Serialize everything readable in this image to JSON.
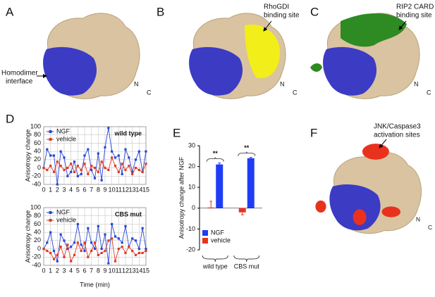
{
  "panel_labels": [
    "A",
    "B",
    "C",
    "D",
    "E",
    "F"
  ],
  "structures": [
    {
      "callout": [
        "Homodimer",
        "interface"
      ],
      "termini": [
        "N",
        "C"
      ]
    },
    {
      "callout": [
        "RhoGDI",
        "binding site"
      ],
      "termini": [
        "N",
        "C"
      ]
    },
    {
      "callout": [
        "RIP2 CARD",
        "binding site"
      ],
      "termini": [
        "N",
        "C"
      ]
    },
    {
      "callout": [
        "JNK/Caspase3",
        "activation sites"
      ],
      "termini": [
        "N",
        "C"
      ]
    }
  ],
  "chart_data": [
    {
      "type": "line",
      "title": "wild type",
      "y_label": "Anisotropy change",
      "grid": true,
      "x": [
        0,
        0.5,
        1,
        1.5,
        2,
        2.5,
        3,
        3.5,
        4,
        4.5,
        5,
        5.5,
        6,
        6.5,
        7,
        7.5,
        8,
        8.5,
        9,
        9.5,
        10,
        10.5,
        11,
        11.5,
        12,
        12.5,
        13,
        13.5,
        14,
        14.5,
        15
      ],
      "xlim": [
        0,
        15
      ],
      "xticks": [
        0,
        1,
        2,
        3,
        4,
        5,
        6,
        7,
        8,
        9,
        10,
        11,
        12,
        13,
        14,
        15
      ],
      "ylim": [
        -40,
        100
      ],
      "yticks": [
        -40,
        -20,
        0,
        20,
        40,
        60,
        80,
        100
      ],
      "series": [
        {
          "name": "NGF",
          "color": "#2846d8",
          "values": [
            0,
            45,
            30,
            30,
            -40,
            40,
            25,
            -20,
            -10,
            15,
            -20,
            -15,
            30,
            45,
            -5,
            -25,
            35,
            -30,
            50,
            97,
            40,
            25,
            30,
            -15,
            45,
            25,
            -10,
            20,
            40,
            -10,
            40
          ]
        },
        {
          "name": "vehicle",
          "color": "#e03a22",
          "values": [
            0,
            -5,
            5,
            -10,
            15,
            5,
            -5,
            0,
            10,
            -10,
            5,
            -5,
            10,
            -15,
            5,
            0,
            -10,
            15,
            0,
            -5,
            25,
            5,
            -10,
            10,
            -5,
            5,
            -15,
            0,
            -5,
            -10,
            10
          ]
        }
      ]
    },
    {
      "type": "line",
      "title": "CBS mut",
      "y_label": "Anisotropy change",
      "x_label": "Time (min)",
      "grid": true,
      "x": [
        0,
        0.5,
        1,
        1.5,
        2,
        2.5,
        3,
        3.5,
        4,
        4.5,
        5,
        5.5,
        6,
        6.5,
        7,
        7.5,
        8,
        8.5,
        9,
        9.5,
        10,
        10.5,
        11,
        11.5,
        12,
        12.5,
        13,
        13.5,
        14,
        14.5,
        15
      ],
      "xlim": [
        0,
        15
      ],
      "xticks": [
        0,
        1,
        2,
        3,
        4,
        5,
        6,
        7,
        8,
        9,
        10,
        11,
        12,
        13,
        14,
        15
      ],
      "ylim": [
        -40,
        100
      ],
      "yticks": [
        -40,
        -20,
        0,
        20,
        40,
        60,
        80,
        100
      ],
      "series": [
        {
          "name": "NGF",
          "color": "#2846d8",
          "values": [
            0,
            15,
            40,
            -5,
            -30,
            35,
            20,
            0,
            5,
            15,
            60,
            10,
            -5,
            50,
            15,
            0,
            55,
            0,
            35,
            -35,
            60,
            30,
            25,
            15,
            55,
            5,
            25,
            20,
            0,
            50,
            0
          ]
        },
        {
          "name": "vehicle",
          "color": "#e03a22",
          "values": [
            0,
            -5,
            -10,
            -25,
            -15,
            5,
            -20,
            10,
            -30,
            -15,
            15,
            -5,
            15,
            -20,
            -5,
            15,
            -15,
            -10,
            -5,
            20,
            25,
            -30,
            0,
            5,
            -10,
            5,
            -5,
            -15,
            -10,
            -10,
            -5
          ]
        }
      ]
    },
    {
      "type": "bar",
      "y_label": "Anisotropy change after NGF",
      "categories": [
        "wild type",
        "CBS mut"
      ],
      "significance": [
        "**",
        "**"
      ],
      "ylim": [
        -20,
        30
      ],
      "yticks": [
        -20,
        -10,
        0,
        10,
        20,
        30
      ],
      "series": [
        {
          "name": "NGF",
          "color": "#1f3cf5",
          "values": [
            21,
            24
          ],
          "errors": [
            0.7,
            0.4
          ]
        },
        {
          "name": "vehicle",
          "color": "#e8321e",
          "values": [
            0.3,
            -2
          ],
          "errors": [
            3,
            1.2
          ]
        }
      ]
    }
  ]
}
